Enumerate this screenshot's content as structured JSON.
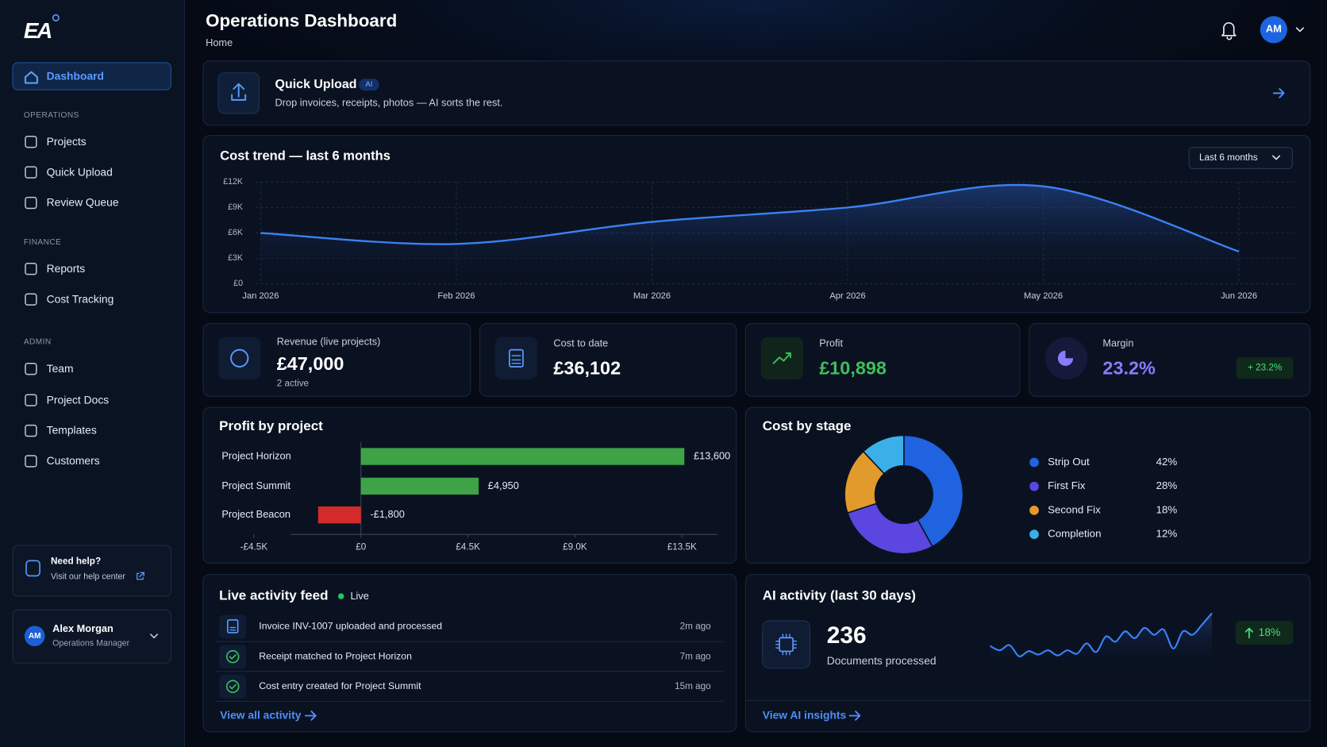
{
  "sidebar": {
    "brand": "EA",
    "nav_top": "Dashboard",
    "sections": [
      {
        "title": "OPERATIONS",
        "items": [
          "Projects",
          "Quick Upload",
          "Review Queue"
        ]
      },
      {
        "title": "FINANCE",
        "items": [
          "Reports",
          "Cost Tracking"
        ]
      },
      {
        "title": "ADMIN",
        "items": [
          "Team",
          "Project Docs",
          "Templates",
          "Customers"
        ]
      }
    ],
    "help": {
      "title": "Need help?",
      "link": "Visit our help center"
    },
    "user": {
      "initials": "AM",
      "name": "Alex Morgan",
      "role": "Operations Manager"
    }
  },
  "header": {
    "title": "Operations Dashboard",
    "breadcrumb": "Home",
    "avatar": "AM"
  },
  "quick_upload": {
    "title": "Quick Upload",
    "badge": "AI",
    "subtitle": "Drop invoices, receipts, photos — AI sorts the rest."
  },
  "cost_trend": {
    "type": "line",
    "title": "Cost trend — last 6 months",
    "filter": "Last 6 months",
    "x": [
      "Jan 2026",
      "Feb 2026",
      "Mar 2026",
      "Apr 2026",
      "May 2026",
      "Jun 2026"
    ],
    "values": [
      6000,
      4700,
      7300,
      9000,
      11500,
      3800
    ],
    "color": "#3b82f6",
    "ylim": [
      0,
      12000
    ],
    "yticks": [
      {
        "value": 0,
        "label": "£0"
      },
      {
        "value": 3000,
        "label": "£3K"
      },
      {
        "value": 6000,
        "label": "£6K"
      },
      {
        "value": 9000,
        "label": "£9K"
      },
      {
        "value": 12000,
        "label": "£12K"
      }
    ],
    "grid": true
  },
  "kpis": [
    {
      "label": "Revenue (live projects)",
      "value": "£47,000",
      "note": "2 active"
    },
    {
      "label": "Cost to date",
      "value": "£36,102"
    },
    {
      "label": "Profit",
      "value": "£10,898"
    },
    {
      "label": "Margin",
      "value": "23.2%",
      "badge": "+ 23.2%"
    }
  ],
  "profit_by_project": {
    "type": "bar",
    "orientation": "horizontal",
    "title": "Profit by project",
    "categories": [
      "Project Horizon",
      "Project Summit",
      "Project Beacon"
    ],
    "values": [
      13600,
      4950,
      -1800
    ],
    "value_labels": [
      "£13,600",
      "£4,950",
      "-£1,800"
    ],
    "colors": [
      "#3da346",
      "#3da346",
      "#d32a2a"
    ],
    "xlim": [
      -4500,
      15000
    ],
    "xticks": [
      {
        "value": -4500,
        "label": "-£4.5K"
      },
      {
        "value": 0,
        "label": "£0"
      },
      {
        "value": 4500,
        "label": "£4.5K"
      },
      {
        "value": 9000,
        "label": "£9.0K"
      },
      {
        "value": 13500,
        "label": "£13.5K"
      }
    ]
  },
  "cost_by_stage": {
    "type": "pie",
    "title": "Cost by stage",
    "categories": [
      "Strip Out",
      "First Fix",
      "Second Fix",
      "Completion"
    ],
    "values": [
      42,
      28,
      18,
      12
    ],
    "value_labels": [
      "42%",
      "28%",
      "18%",
      "12%"
    ],
    "colors": [
      "#1f63e0",
      "#5b47e0",
      "#e39a2c",
      "#3bb0e8"
    ]
  },
  "activity_feed": {
    "title": "Live activity feed",
    "status": "Live",
    "items": [
      {
        "text": "Invoice INV-1007 uploaded and processed",
        "time": "2m ago"
      },
      {
        "text": "Receipt matched to Project Horizon",
        "time": "7m ago"
      },
      {
        "text": "Cost entry created for Project Summit",
        "time": "15m ago"
      }
    ],
    "link": "View all activity"
  },
  "ai_activity": {
    "title": "AI activity (last 30 days)",
    "count": "236",
    "count_label": "Documents processed",
    "badge": "18%",
    "link": "View AI insights",
    "chart": {
      "type": "line",
      "values": [
        15,
        10,
        16,
        3,
        9,
        5,
        10,
        4,
        10,
        6,
        18,
        8,
        26,
        20,
        32,
        24,
        36,
        28,
        34,
        12,
        32,
        28,
        40,
        53
      ],
      "ylim": [
        0,
        55
      ],
      "color": "#3b82f6"
    }
  }
}
